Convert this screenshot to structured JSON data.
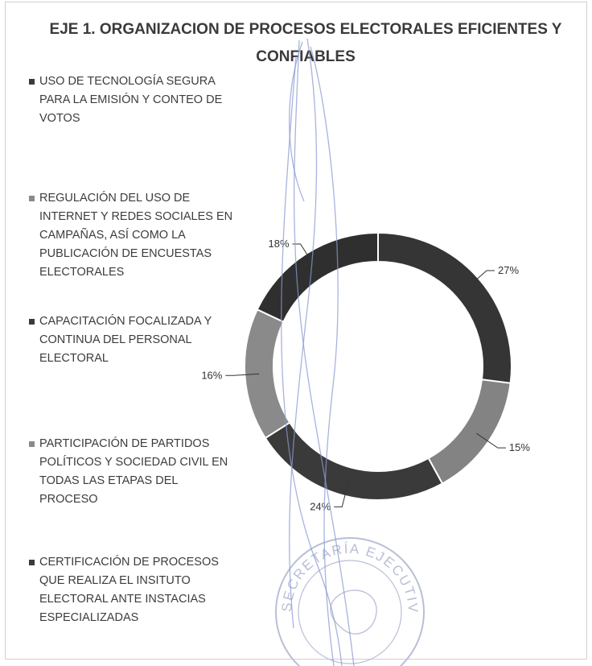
{
  "chart_data": {
    "type": "donut",
    "title": "EJE 1. ORGANIZACION DE PROCESOS ELECTORALES EFICIENTES Y CONFIABLES",
    "series": [
      {
        "name": "USO DE TECNOLOGÍA SEGURA PARA LA EMISIÓN Y CONTEO DE VOTOS",
        "value": 27,
        "label": "27%",
        "color": "#353535"
      },
      {
        "name": "REGULACIÓN DEL USO DE INTERNET Y REDES SOCIALES EN CAMPAÑAS, ASÍ COMO LA PUBLICACIÓN DE ENCUESTAS ELECTORALES",
        "value": 15,
        "label": "15%",
        "color": "#838383"
      },
      {
        "name": "CAPACITACIÓN FOCALIZADA Y CONTINUA DEL PERSONAL ELECTORAL",
        "value": 24,
        "label": "24%",
        "color": "#3a3a3a"
      },
      {
        "name": "PARTICIPACIÓN DE PARTIDOS POLÍTICOS Y SOCIEDAD CIVIL EN TODAS LAS ETAPAS DEL PROCESO",
        "value": 16,
        "label": "16%",
        "color": "#8a8a8a"
      },
      {
        "name": "CERTIFICACIÓN DE PROCESOS QUE REALIZA EL INSITUTO ELECTORAL ANTE INSTACIAS ESPECIALIZADAS",
        "value": 18,
        "label": "18%",
        "color": "#2f2f2f"
      }
    ],
    "legend_position": "left",
    "grid": false
  },
  "legend_items": [
    {
      "text": "USO DE TECNOLOGÍA SEGURA PARA LA EMISIÓN Y CONTEO DE VOTOS",
      "color": "#3a3a3a"
    },
    {
      "text": "REGULACIÓN DEL USO DE INTERNET Y REDES SOCIALES EN CAMPAÑAS, ASÍ COMO LA PUBLICACIÓN DE ENCUESTAS ELECTORALES",
      "color": "#8a8a8a"
    },
    {
      "text": "CAPACITACIÓN FOCALIZADA Y CONTINUA DEL PERSONAL ELECTORAL",
      "color": "#3a3a3a"
    },
    {
      "text": "PARTICIPACIÓN DE PARTIDOS POLÍTICOS Y SOCIEDAD CIVIL EN TODAS LAS ETAPAS DEL PROCESO",
      "color": "#8a8a8a"
    },
    {
      "text": "CERTIFICACIÓN DE PROCESOS QUE REALIZA EL INSITUTO ELECTORAL ANTE INSTACIAS ESPECIALIZADAS",
      "color": "#3a3a3a"
    }
  ],
  "stamp": {
    "text": "SECRETARÍA EJECUTIVA",
    "color": "#b8bfd6"
  },
  "scribble_color": "#8b9ad3"
}
